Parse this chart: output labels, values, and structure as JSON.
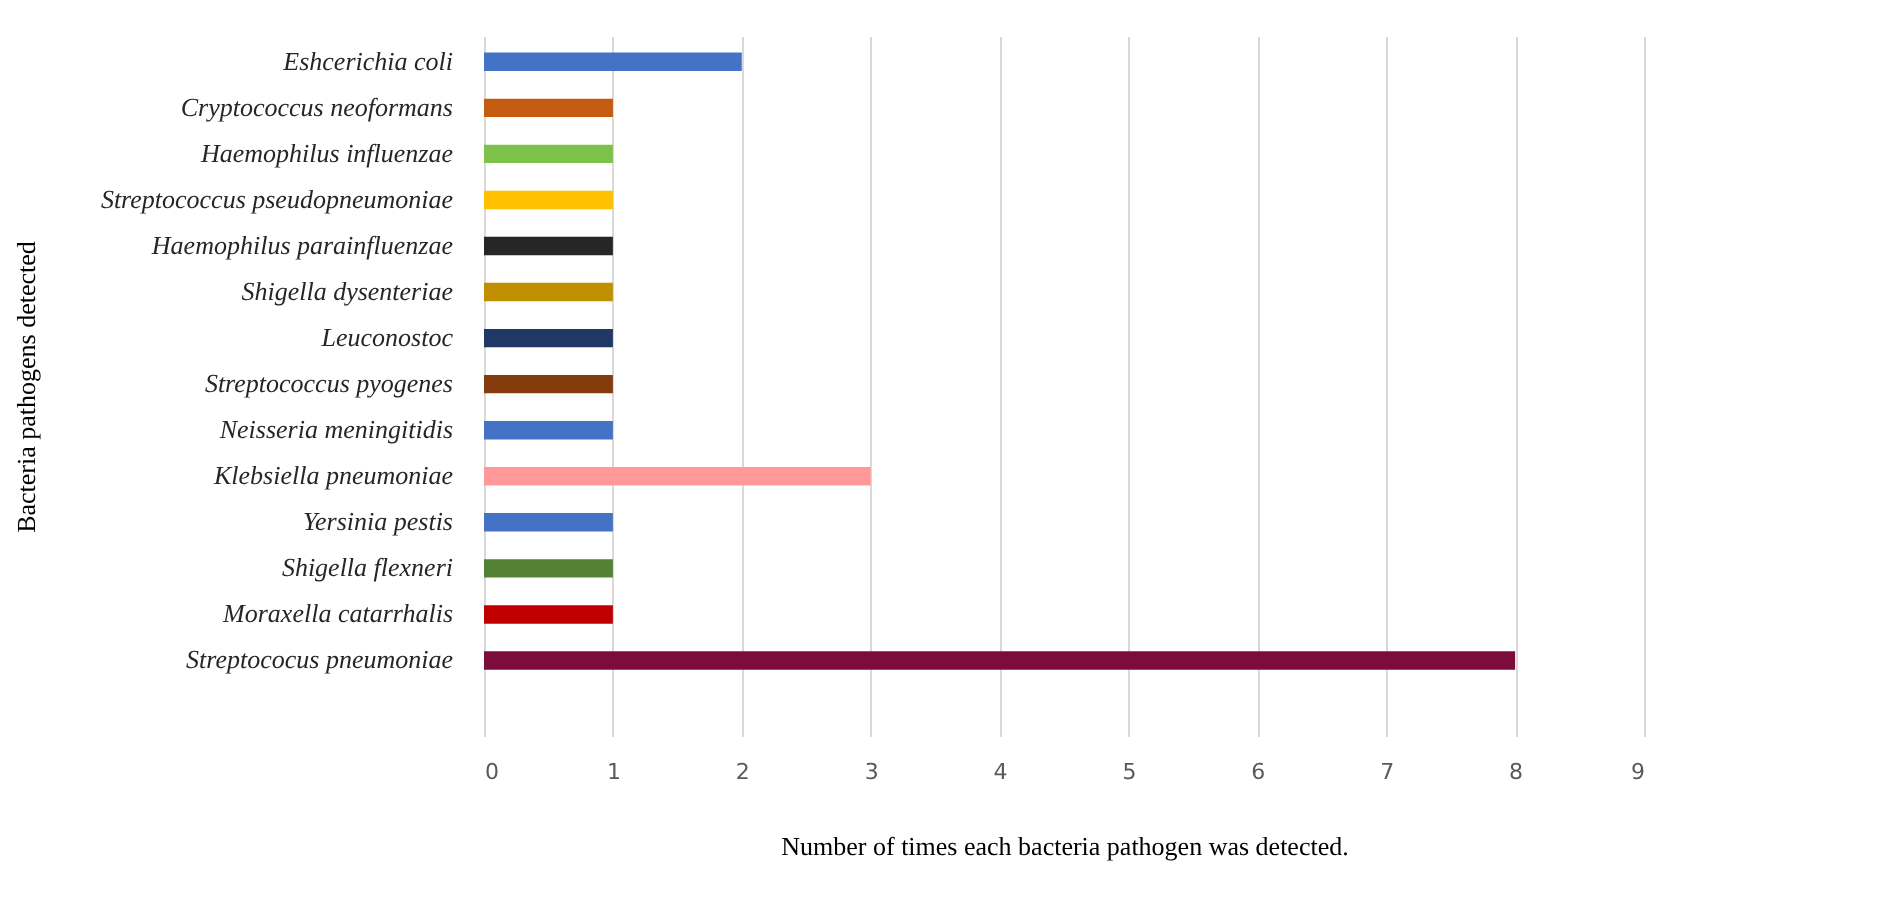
{
  "chart_data": {
    "type": "bar",
    "orientation": "horizontal",
    "xlabel": "Number of times each bacteria pathogen was detected.",
    "ylabel": "Bacteria pathogens detected",
    "categories": [
      "Eshcerichia coli",
      "Cryptococcus neoformans",
      "Haemophilus influenzae",
      "Streptococcus pseudopneumoniae",
      "Haemophilus parainfluenzae",
      "Shigella dysenteriae",
      "Leuconostoc",
      "Streptococcus pyogenes",
      "Neisseria meningitidis",
      "Klebsiella pneumoniae",
      "Yersinia pestis",
      "Shigella flexneri",
      "Moraxella catarrhalis",
      "Streptococus pneumoniae"
    ],
    "values": [
      2,
      1,
      1,
      1,
      1,
      1,
      1,
      1,
      1,
      3,
      1,
      1,
      1,
      8
    ],
    "colors": [
      "#4472c4",
      "#c55a11",
      "#7cc24a",
      "#ffc000",
      "#262626",
      "#bf8f00",
      "#1f3864",
      "#843c0c",
      "#4472c4",
      "#ff9999",
      "#4472c4",
      "#548235",
      "#c00000",
      "#7b0c3c"
    ],
    "xlim": [
      0,
      9
    ],
    "xticks": [
      0,
      1,
      2,
      3,
      4,
      5,
      6,
      7,
      8,
      9
    ],
    "grid": "x"
  }
}
